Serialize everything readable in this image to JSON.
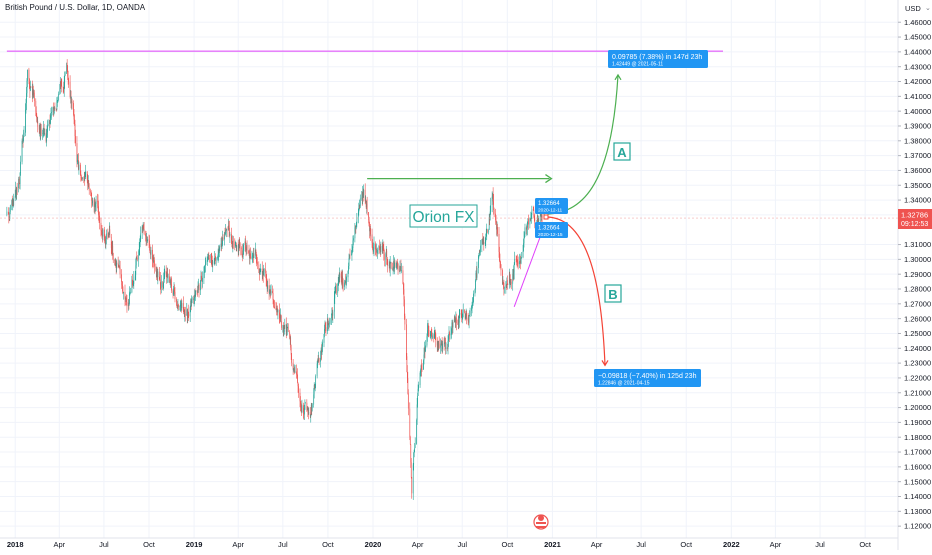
{
  "header": {
    "title": "British Pound / U.S. Dollar, 1D, OANDA",
    "currency": "USD"
  },
  "colors": {
    "up": "#26a69a",
    "down": "#ef5350",
    "resistance_line": "#e040fb",
    "green_path": "#4caf50",
    "red_path": "#f44336",
    "price_tag": "#ef5350",
    "callout": "#2196f3",
    "brand": "#26a69a"
  },
  "overlays": {
    "watermark": "Orion FX",
    "label_a": "A",
    "label_b": "B",
    "entry_top": {
      "price": "1.32664",
      "date": "2020-12-11"
    },
    "entry_bottom": {
      "price": "1.32664",
      "date": "2020-12-15"
    },
    "target_up": {
      "line1": "0.09785 (7.38%) in 147d 23h",
      "line2": "1.42449 @ 2021-05-11"
    },
    "target_down": {
      "line1": "−0.09818 (−7.40%) in 125d 23h",
      "line2": "1.22846 @ 2021-04-15"
    }
  },
  "price_tag": {
    "price": "1.32786",
    "countdown": "09:12:53"
  },
  "chart_data": {
    "type": "candlestick",
    "title": "British Pound / U.S. Dollar, 1D, OANDA",
    "ylim": [
      1.112,
      1.475
    ],
    "y_ticks": [
      "1.46000",
      "1.45000",
      "1.44000",
      "1.43000",
      "1.42000",
      "1.41000",
      "1.40000",
      "1.39000",
      "1.38000",
      "1.37000",
      "1.36000",
      "1.35000",
      "1.34000",
      "1.33000",
      "1.31000",
      "1.30000",
      "1.29000",
      "1.28000",
      "1.27000",
      "1.26000",
      "1.25000",
      "1.24000",
      "1.23000",
      "1.22000",
      "1.21000",
      "1.20000",
      "1.19000",
      "1.18000",
      "1.17000",
      "1.16000",
      "1.15000",
      "1.14000",
      "1.13000",
      "1.12000"
    ],
    "x_labels": [
      {
        "label": "2018",
        "date": "2018-01"
      },
      {
        "label": "Apr",
        "date": "2018-04"
      },
      {
        "label": "Jul",
        "date": "2018-07"
      },
      {
        "label": "Oct",
        "date": "2018-10"
      },
      {
        "label": "2019",
        "date": "2019-01"
      },
      {
        "label": "Apr",
        "date": "2019-04"
      },
      {
        "label": "Jul",
        "date": "2019-07"
      },
      {
        "label": "Oct",
        "date": "2019-10"
      },
      {
        "label": "2020",
        "date": "2020-01"
      },
      {
        "label": "Apr",
        "date": "2020-04"
      },
      {
        "label": "Jul",
        "date": "2020-07"
      },
      {
        "label": "Oct",
        "date": "2020-10"
      },
      {
        "label": "2021",
        "date": "2021-01"
      },
      {
        "label": "Apr",
        "date": "2021-04"
      },
      {
        "label": "Jul",
        "date": "2021-07"
      },
      {
        "label": "Oct",
        "date": "2021-10"
      },
      {
        "label": "2022",
        "date": "2022-01"
      },
      {
        "label": "Apr",
        "date": "2022-04"
      },
      {
        "label": "Jul",
        "date": "2022-07"
      },
      {
        "label": "Oct",
        "date": "2022-10"
      }
    ],
    "close_path": [
      {
        "date": "2017-12-15",
        "close": 1.33
      },
      {
        "date": "2018-01-10",
        "close": 1.35
      },
      {
        "date": "2018-01-26",
        "close": 1.42
      },
      {
        "date": "2018-02-15",
        "close": 1.4
      },
      {
        "date": "2018-03-05",
        "close": 1.38
      },
      {
        "date": "2018-04-17",
        "close": 1.43
      },
      {
        "date": "2018-05-10",
        "close": 1.36
      },
      {
        "date": "2018-06-10",
        "close": 1.34
      },
      {
        "date": "2018-07-15",
        "close": 1.31
      },
      {
        "date": "2018-08-15",
        "close": 1.27
      },
      {
        "date": "2018-09-20",
        "close": 1.32
      },
      {
        "date": "2018-10-20",
        "close": 1.29
      },
      {
        "date": "2018-11-20",
        "close": 1.28
      },
      {
        "date": "2018-12-15",
        "close": 1.26
      },
      {
        "date": "2019-01-10",
        "close": 1.28
      },
      {
        "date": "2019-02-05",
        "close": 1.3
      },
      {
        "date": "2019-03-10",
        "close": 1.32
      },
      {
        "date": "2019-04-05",
        "close": 1.31
      },
      {
        "date": "2019-05-10",
        "close": 1.3
      },
      {
        "date": "2019-06-05",
        "close": 1.27
      },
      {
        "date": "2019-07-05",
        "close": 1.25
      },
      {
        "date": "2019-08-10",
        "close": 1.21
      },
      {
        "date": "2019-08-25",
        "close": 1.2
      },
      {
        "date": "2019-09-20",
        "close": 1.24
      },
      {
        "date": "2019-10-15",
        "close": 1.28
      },
      {
        "date": "2019-11-10",
        "close": 1.29
      },
      {
        "date": "2019-12-13",
        "close": 1.35
      },
      {
        "date": "2020-01-05",
        "close": 1.31
      },
      {
        "date": "2020-02-05",
        "close": 1.3
      },
      {
        "date": "2020-03-01",
        "close": 1.29
      },
      {
        "date": "2020-03-20",
        "close": 1.15
      },
      {
        "date": "2020-04-05",
        "close": 1.23
      },
      {
        "date": "2020-05-01",
        "close": 1.25
      },
      {
        "date": "2020-06-01",
        "close": 1.24
      },
      {
        "date": "2020-06-15",
        "close": 1.26
      },
      {
        "date": "2020-07-15",
        "close": 1.26
      },
      {
        "date": "2020-08-15",
        "close": 1.32
      },
      {
        "date": "2020-09-01",
        "close": 1.34
      },
      {
        "date": "2020-09-25",
        "close": 1.28
      },
      {
        "date": "2020-10-20",
        "close": 1.3
      },
      {
        "date": "2020-11-20",
        "close": 1.33
      },
      {
        "date": "2020-12-11",
        "close": 1.33
      }
    ],
    "resistance": {
      "price": 1.4405,
      "from": "2017-12-15",
      "to": "2021-12-15"
    },
    "green_level": {
      "price": 1.3545,
      "from": "2019-12-20",
      "to": "2020-12-30"
    },
    "trendline": {
      "from": {
        "date": "2020-10-15",
        "price": 1.268
      },
      "to": {
        "date": "2020-12-18",
        "price": 1.325
      }
    },
    "target_up_price": 1.42449,
    "target_down_price": 1.22846
  }
}
